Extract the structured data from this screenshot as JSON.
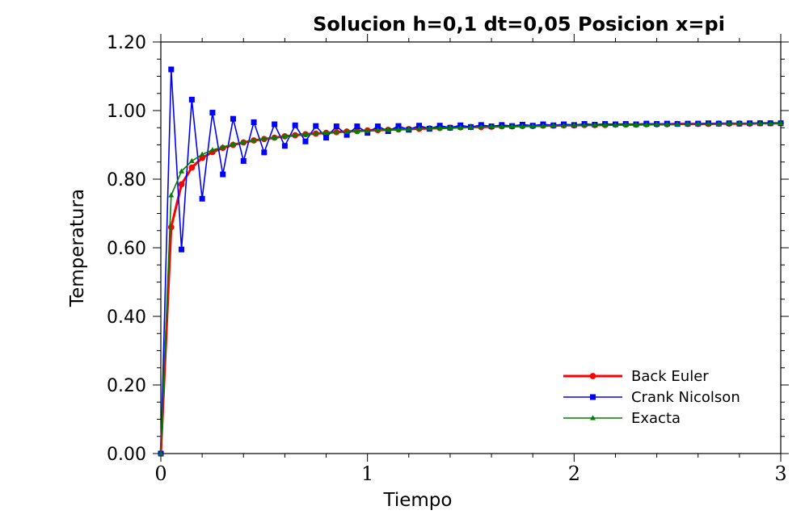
{
  "chart_data": {
    "type": "line",
    "title": "Solucion  h=0,1  dt=0,05 Posicion x=pi",
    "xlabel": "Tiempo",
    "ylabel": "Temperatura",
    "xlim": [
      0,
      3
    ],
    "ylim": [
      0,
      1.2
    ],
    "x_ticks": [
      0,
      1,
      2,
      3
    ],
    "x_tick_labels": [
      "0",
      "1",
      "2",
      "3"
    ],
    "y_ticks": [
      0,
      0.2,
      0.4,
      0.6,
      0.8,
      1.0,
      1.2
    ],
    "y_tick_labels": [
      "0.00",
      "0.20",
      "0.40",
      "0.60",
      "0.80",
      "1.00",
      "1.20"
    ],
    "grid": false,
    "legend_position": "bottom-right",
    "x": [
      0.0,
      0.05,
      0.1,
      0.15,
      0.2,
      0.25,
      0.3,
      0.35,
      0.4,
      0.45,
      0.5,
      0.55,
      0.6,
      0.65,
      0.7,
      0.75,
      0.8,
      0.85,
      0.9,
      0.95,
      1.0,
      1.05,
      1.1,
      1.15,
      1.2,
      1.25,
      1.3,
      1.35,
      1.4,
      1.45,
      1.5,
      1.55,
      1.6,
      1.65,
      1.7,
      1.75,
      1.8,
      1.85,
      1.9,
      1.95,
      2.0,
      2.05,
      2.1,
      2.15,
      2.2,
      2.25,
      2.3,
      2.35,
      2.4,
      2.45,
      2.5,
      2.55,
      2.6,
      2.65,
      2.7,
      2.75,
      2.8,
      2.85,
      2.9,
      2.95,
      3.0
    ],
    "series": [
      {
        "name": "Back Euler",
        "color": "#ff0000",
        "marker": "circle",
        "values": [
          0.0,
          0.66,
          0.785,
          0.834,
          0.862,
          0.879,
          0.891,
          0.9,
          0.907,
          0.913,
          0.917,
          0.921,
          0.925,
          0.928,
          0.931,
          0.933,
          0.935,
          0.937,
          0.939,
          0.94,
          0.942,
          0.943,
          0.944,
          0.945,
          0.946,
          0.947,
          0.948,
          0.949,
          0.95,
          0.951,
          0.952,
          0.952,
          0.953,
          0.954,
          0.954,
          0.955,
          0.955,
          0.956,
          0.956,
          0.957,
          0.957,
          0.958,
          0.958,
          0.958,
          0.959,
          0.959,
          0.959,
          0.96,
          0.96,
          0.96,
          0.961,
          0.961,
          0.961,
          0.961,
          0.962,
          0.962,
          0.962,
          0.962,
          0.963,
          0.963,
          0.963
        ]
      },
      {
        "name": "Crank Nicolson",
        "color": "#0000ff",
        "marker": "square",
        "values": [
          0.0,
          1.12,
          0.595,
          1.032,
          0.743,
          0.994,
          0.814,
          0.976,
          0.853,
          0.966,
          0.878,
          0.96,
          0.897,
          0.957,
          0.91,
          0.955,
          0.921,
          0.954,
          0.929,
          0.954,
          0.935,
          0.954,
          0.94,
          0.955,
          0.944,
          0.956,
          0.947,
          0.956,
          0.95,
          0.957,
          0.952,
          0.958,
          0.954,
          0.958,
          0.955,
          0.959,
          0.956,
          0.96,
          0.957,
          0.96,
          0.958,
          0.961,
          0.959,
          0.961,
          0.96,
          0.961,
          0.96,
          0.962,
          0.961,
          0.962,
          0.961,
          0.962,
          0.962,
          0.963,
          0.962,
          0.963,
          0.962,
          0.963,
          0.963,
          0.963,
          0.963
        ]
      },
      {
        "name": "Exacta",
        "color": "#008000",
        "marker": "triangle",
        "values": [
          0.0,
          0.753,
          0.823,
          0.853,
          0.872,
          0.885,
          0.894,
          0.902,
          0.908,
          0.913,
          0.918,
          0.921,
          0.925,
          0.928,
          0.93,
          0.933,
          0.935,
          0.937,
          0.938,
          0.94,
          0.941,
          0.943,
          0.944,
          0.945,
          0.946,
          0.947,
          0.948,
          0.949,
          0.95,
          0.95,
          0.951,
          0.952,
          0.953,
          0.953,
          0.954,
          0.954,
          0.955,
          0.955,
          0.956,
          0.956,
          0.957,
          0.957,
          0.958,
          0.958,
          0.958,
          0.959,
          0.959,
          0.959,
          0.96,
          0.96,
          0.96,
          0.961,
          0.961,
          0.961,
          0.961,
          0.962,
          0.962,
          0.962,
          0.962,
          0.962,
          0.963
        ]
      }
    ]
  }
}
